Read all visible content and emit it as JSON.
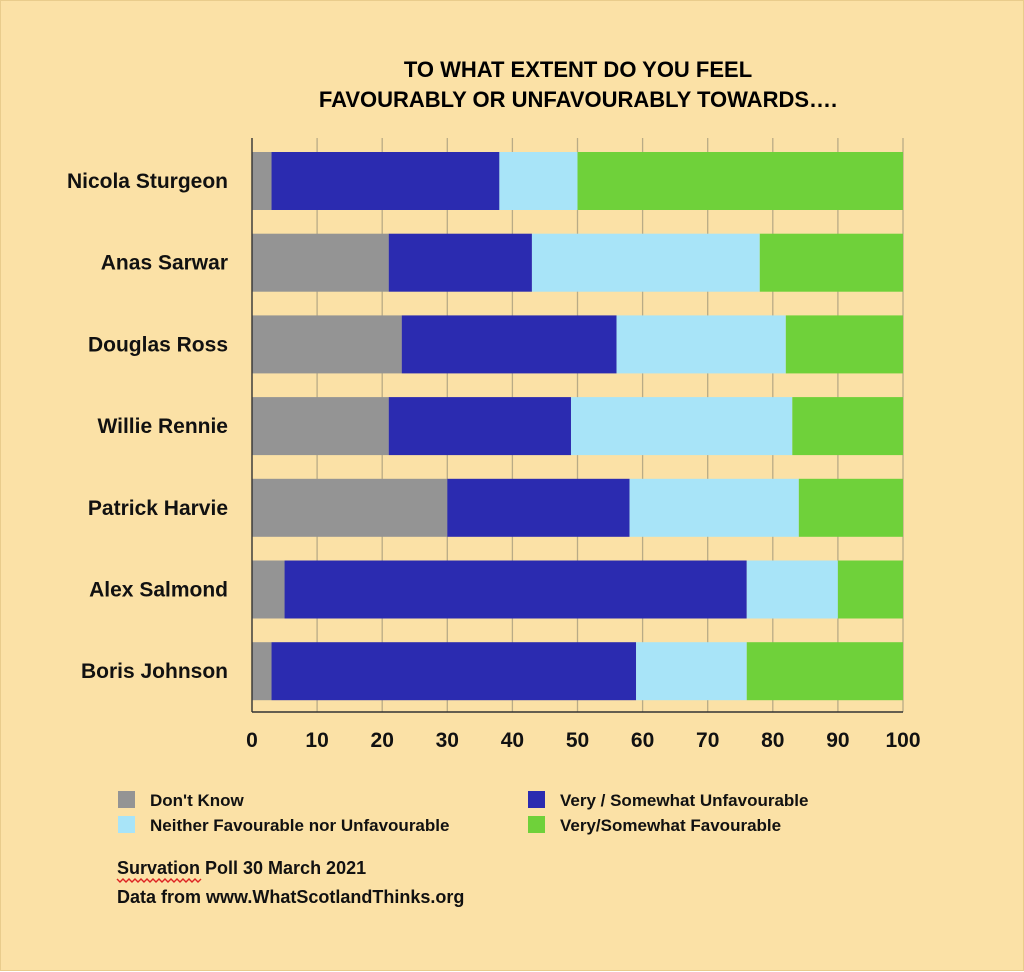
{
  "chart_data": {
    "type": "bar",
    "orientation": "horizontal",
    "stacked": true,
    "title_lines": [
      "TO WHAT EXTENT DO YOU FEEL",
      "FAVOURABLY OR UNFAVOURABLY TOWARDS…."
    ],
    "xlim": [
      0,
      100
    ],
    "xticks": [
      0,
      10,
      20,
      30,
      40,
      50,
      60,
      70,
      80,
      90,
      100
    ],
    "grid": true,
    "legend_position": "bottom",
    "categories": [
      "Nicola Sturgeon",
      "Anas Sarwar",
      "Douglas Ross",
      "Willie Rennie",
      "Patrick Harvie",
      "Alex Salmond",
      "Boris Johnson"
    ],
    "series": [
      {
        "name": "Don't Know",
        "color": "#949494",
        "values": [
          3,
          21,
          23,
          21,
          30,
          5,
          3
        ]
      },
      {
        "name": "Very / Somewhat Unfavourable",
        "color": "#2b2bb0",
        "values": [
          35,
          22,
          33,
          28,
          28,
          71,
          56
        ]
      },
      {
        "name": "Neither Favourable nor Unfavourable",
        "color": "#a8e4f8",
        "values": [
          12,
          35,
          26,
          34,
          26,
          14,
          17
        ]
      },
      {
        "name": "Very/Somewhat Favourable",
        "color": "#6fd13a",
        "values": [
          50,
          22,
          18,
          17,
          16,
          10,
          24
        ]
      }
    ]
  },
  "source": {
    "poll_prefix": "Survation",
    "poll_rest": " Poll 30 March 2021",
    "data_line": "Data from www.WhatScotlandThinks.org"
  }
}
